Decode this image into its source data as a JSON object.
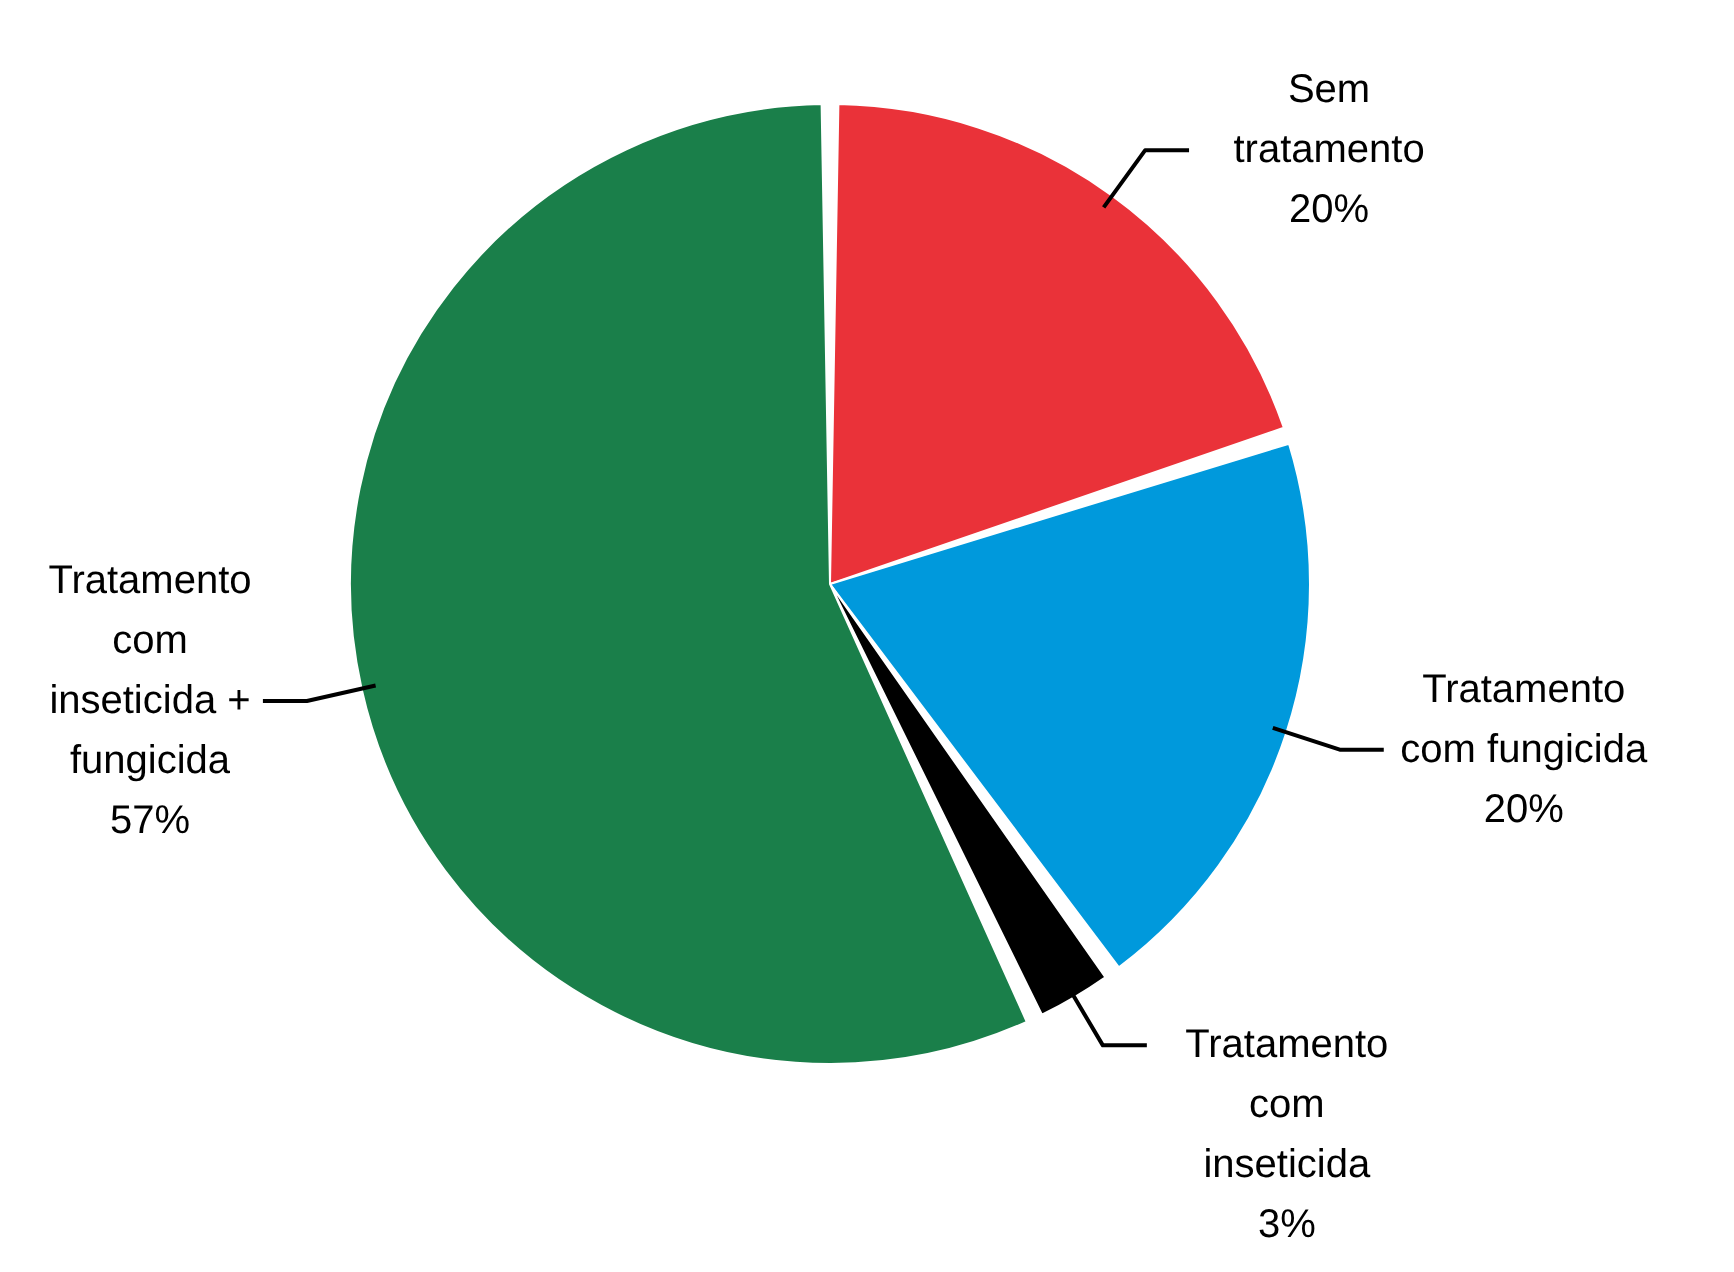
{
  "chart_data": {
    "type": "pie",
    "categories": [
      "Sem tratamento",
      "Tratamento com fungicida",
      "Tratamento com inseticida",
      "Tratamento com inseticida + fungicida"
    ],
    "values": [
      20,
      20,
      3,
      57
    ],
    "value_labels": [
      "20%",
      "20%",
      "3%",
      "57%"
    ],
    "colors": [
      "#ea3239",
      "#0099dc",
      "#000000",
      "#1a7f4a"
    ]
  }
}
